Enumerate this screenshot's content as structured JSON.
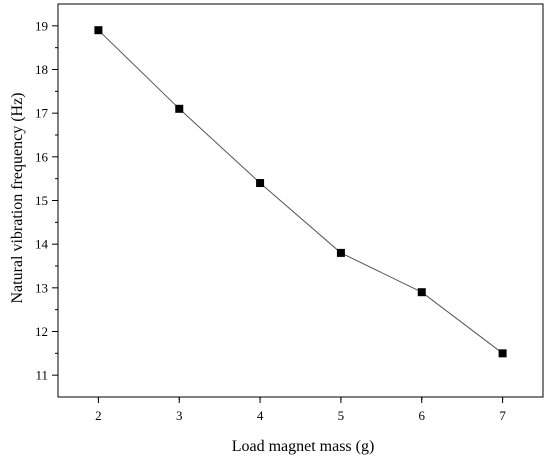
{
  "chart_data": {
    "type": "line",
    "title": "",
    "xlabel": "Load magnet mass (g)",
    "ylabel": "Natural vibration frequency (Hz)",
    "x": [
      2,
      3,
      4,
      5,
      6,
      7
    ],
    "series": [
      {
        "values": [
          18.9,
          17.1,
          15.4,
          13.8,
          12.9,
          11.5
        ]
      }
    ],
    "xlim": [
      1.5,
      7.5
    ],
    "ylim": [
      10.5,
      19.5
    ],
    "xticks": [
      "2",
      "3",
      "4",
      "5",
      "6",
      "7"
    ],
    "yticks": [
      "11",
      "12",
      "13",
      "14",
      "15",
      "16",
      "17",
      "18",
      "19"
    ],
    "grid": false,
    "legend": "none",
    "marker": "square",
    "colors": {
      "line": "#555555",
      "marker": "#000000",
      "axis": "#000000"
    }
  }
}
